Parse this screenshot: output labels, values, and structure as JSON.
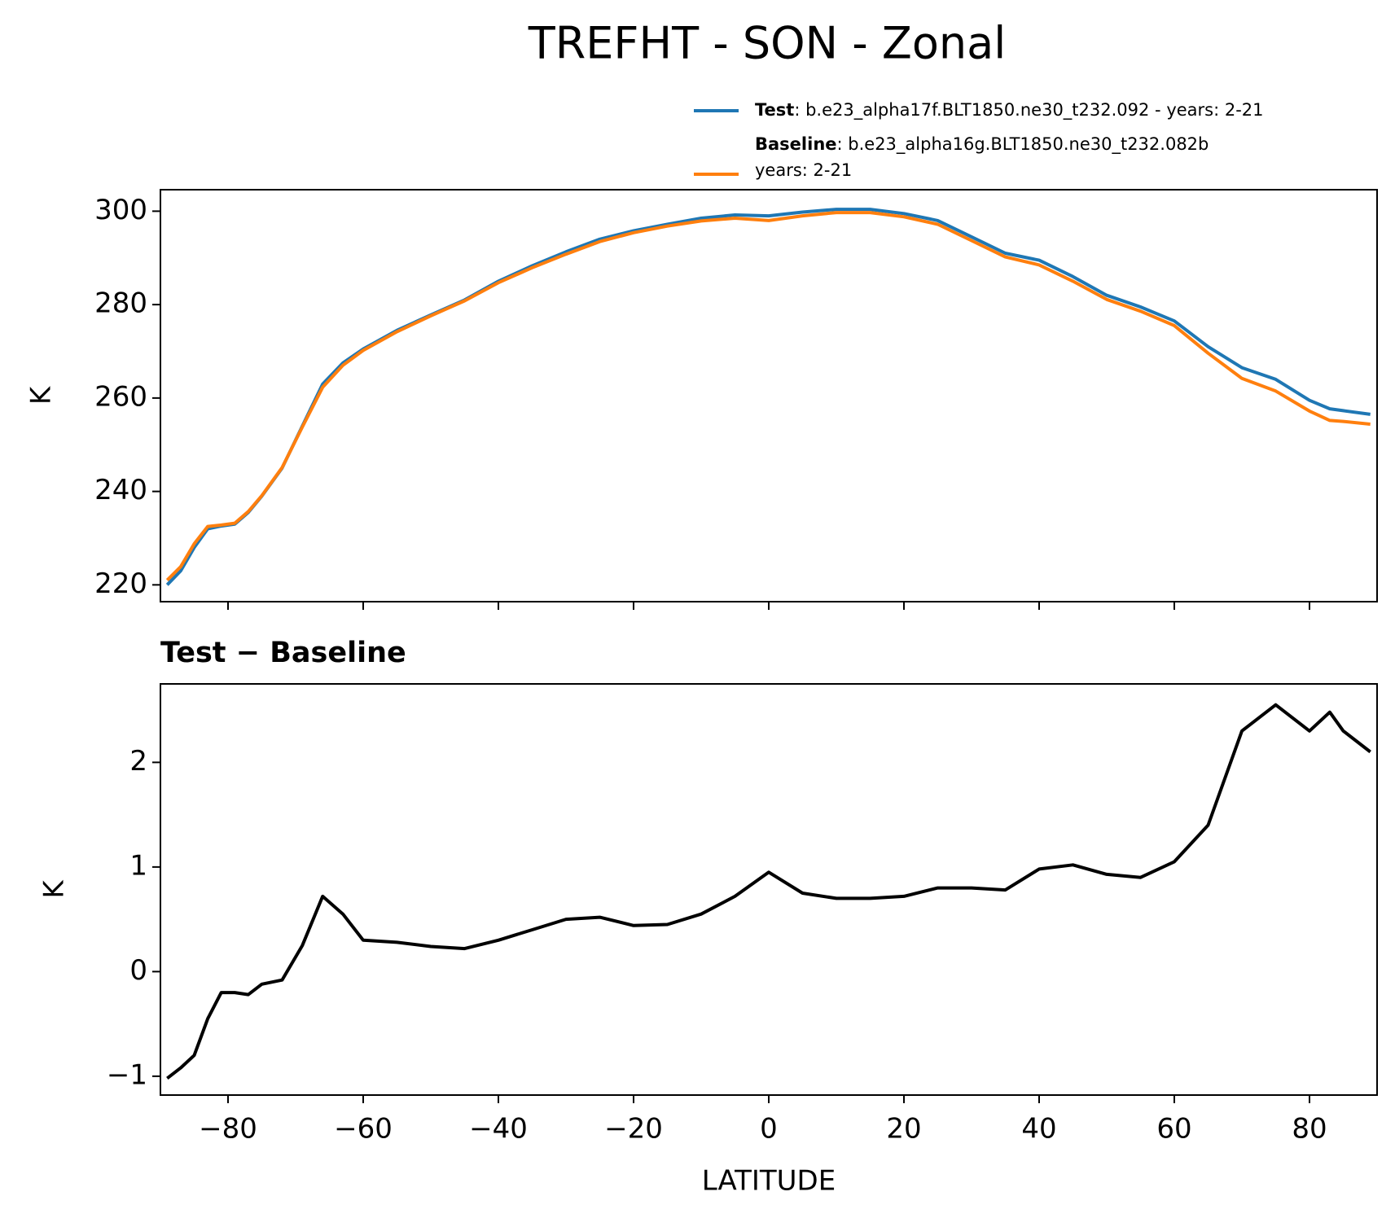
{
  "chart_data": [
    {
      "type": "line",
      "title": "TREFHT - SON - Zonal",
      "ylabel": "K",
      "x": [
        -89,
        -87,
        -85,
        -83,
        -81,
        -79,
        -77,
        -75,
        -72,
        -69,
        -66,
        -63,
        -60,
        -55,
        -50,
        -45,
        -40,
        -35,
        -30,
        -25,
        -20,
        -15,
        -10,
        -5,
        0,
        5,
        10,
        15,
        20,
        25,
        30,
        35,
        40,
        45,
        50,
        55,
        60,
        65,
        70,
        75,
        80,
        83,
        85,
        89
      ],
      "series": [
        {
          "name": "Test",
          "label": [
            ": b.e23_alpha17f.BLT1850.ne30_t232.092 - years: 2-21"
          ],
          "color": "#1f77b4",
          "values": [
            220,
            223,
            228,
            232,
            232.6,
            233,
            235.5,
            239,
            245,
            254,
            263,
            267.5,
            270.5,
            274.5,
            277.8,
            281,
            285,
            288.3,
            291.3,
            294,
            295.8,
            297.2,
            298.5,
            299.2,
            299,
            299.8,
            300.4,
            300.4,
            299.5,
            298,
            294.5,
            291,
            289.5,
            286,
            282,
            279.5,
            276.5,
            271,
            266.5,
            264,
            259.5,
            257.7,
            257.3,
            256.5
          ]
        },
        {
          "name": "Baseline",
          "label": [
            ": b.e23_alpha16g.BLT1850.ne30_t232.082b",
            "years: 2-21"
          ],
          "color": "#ff7f0e",
          "values": [
            221.0,
            223.9,
            228.8,
            232.5,
            232.8,
            233.2,
            235.7,
            239.1,
            245.1,
            253.8,
            262.3,
            267.0,
            270.2,
            274.2,
            277.6,
            280.8,
            284.7,
            287.9,
            290.8,
            293.5,
            295.4,
            296.8,
            297.9,
            298.5,
            298.0,
            299.0,
            299.7,
            299.7,
            298.8,
            297.2,
            293.7,
            290.2,
            288.5,
            285.0,
            281.1,
            278.6,
            275.5,
            269.6,
            264.2,
            261.5,
            257.2,
            255.2,
            255.0,
            254.4
          ]
        }
      ],
      "xlim": [
        -90,
        90
      ],
      "xticks": [
        -80,
        -60,
        -40,
        -20,
        0,
        20,
        40,
        60,
        80
      ],
      "ylim": [
        216.4,
        304.6
      ],
      "yticks": [
        220,
        240,
        260,
        280,
        300
      ],
      "legend": "upper right"
    },
    {
      "type": "line",
      "title": "Test − Baseline",
      "xlabel": "LATITUDE",
      "ylabel": "K",
      "x": [
        -89,
        -87,
        -85,
        -83,
        -81,
        -79,
        -77,
        -75,
        -72,
        -69,
        -66,
        -63,
        -60,
        -55,
        -50,
        -45,
        -40,
        -35,
        -30,
        -25,
        -20,
        -15,
        -10,
        -5,
        0,
        5,
        10,
        15,
        20,
        25,
        30,
        35,
        40,
        45,
        50,
        55,
        60,
        65,
        70,
        75,
        80,
        83,
        85,
        89
      ],
      "series": [
        {
          "color": "#000000",
          "values": [
            -1.02,
            -0.92,
            -0.8,
            -0.45,
            -0.2,
            -0.2,
            -0.22,
            -0.12,
            -0.08,
            0.25,
            0.72,
            0.55,
            0.3,
            0.28,
            0.24,
            0.22,
            0.3,
            0.4,
            0.5,
            0.52,
            0.44,
            0.45,
            0.55,
            0.72,
            0.95,
            0.75,
            0.7,
            0.7,
            0.72,
            0.8,
            0.8,
            0.78,
            0.98,
            1.02,
            0.93,
            0.9,
            1.05,
            1.4,
            2.3,
            2.55,
            2.3,
            2.48,
            2.3,
            2.1
          ]
        }
      ],
      "xlim": [
        -90,
        90
      ],
      "xticks": [
        {
          "value": -80,
          "label": "−80"
        },
        {
          "value": -60,
          "label": "−60"
        },
        {
          "value": -40,
          "label": "−40"
        },
        {
          "value": -20,
          "label": "−20"
        },
        0,
        20,
        40,
        60,
        80
      ],
      "ylim": [
        -1.18,
        2.75
      ],
      "yticks": [
        {
          "value": -1,
          "label": "−1"
        },
        0,
        1,
        2
      ]
    }
  ]
}
